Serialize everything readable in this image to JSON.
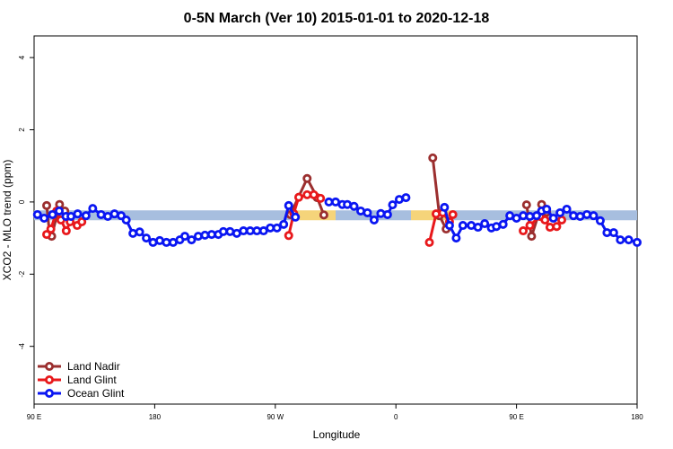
{
  "chart_data": {
    "type": "line",
    "title": "0-5N March (Ver 10)   2015-01-01 to 2020-12-18",
    "xlabel": "Longitude",
    "ylabel": "XCO2 - MLO trend (ppm)",
    "xlim": [
      0,
      360
    ],
    "ylim": [
      -5.6,
      4.6
    ],
    "x_ticks": [
      {
        "value": 0,
        "label": "90 E"
      },
      {
        "value": 72,
        "label": "180"
      },
      {
        "value": 144,
        "label": "90 W"
      },
      {
        "value": 216,
        "label": "0"
      },
      {
        "value": 288,
        "label": "90 E"
      },
      {
        "value": 360,
        "label": "180"
      }
    ],
    "y_ticks": [
      -4,
      -2,
      0,
      2,
      4
    ],
    "grid": false,
    "legend_position": "bottom-left",
    "bands": [
      {
        "x": [
          0,
          155
        ],
        "y": -0.37,
        "color": "#a7bedf"
      },
      {
        "x": [
          155,
          180
        ],
        "y": -0.37,
        "color": "#f5d47a"
      },
      {
        "x": [
          180,
          225
        ],
        "y": -0.37,
        "color": "#a7bedf"
      },
      {
        "x": [
          225,
          250
        ],
        "y": -0.37,
        "color": "#f5d47a"
      },
      {
        "x": [
          250,
          360
        ],
        "y": -0.37,
        "color": "#a7bedf"
      }
    ],
    "series": [
      {
        "name": "Land Nadir",
        "color": "#9b2f2f",
        "segments": [
          [
            [
              7.5,
              -0.1
            ],
            [
              9.3,
              -0.9
            ],
            [
              10.5,
              -0.95
            ],
            [
              15.2,
              -0.07
            ],
            [
              18.3,
              -0.25
            ]
          ],
          [
            [
              153,
              -0.35
            ],
            [
              163,
              0.65
            ],
            [
              169,
              0.12
            ],
            [
              173,
              -0.36
            ]
          ],
          [
            [
              238,
              1.22
            ],
            [
              242,
              -0.38
            ],
            [
              246,
              -0.75
            ]
          ],
          [
            [
              294,
              -0.08
            ],
            [
              297,
              -0.95
            ],
            [
              303,
              -0.07
            ],
            [
              306,
              -0.28
            ]
          ]
        ]
      },
      {
        "name": "Land Glint",
        "color": "#e8181b",
        "segments": [
          [
            [
              7.5,
              -0.9
            ],
            [
              10.0,
              -0.75
            ],
            [
              13.5,
              -0.25
            ],
            [
              16.0,
              -0.5
            ],
            [
              19.2,
              -0.8
            ],
            [
              21.5,
              -0.55
            ],
            [
              25.7,
              -0.65
            ],
            [
              28.5,
              -0.55
            ]
          ],
          [
            [
              152,
              -0.93
            ],
            [
              155,
              -0.32
            ],
            [
              158,
              0.13
            ],
            [
              163,
              0.2
            ],
            [
              167,
              0.2
            ],
            [
              171,
              0.1
            ]
          ],
          [
            [
              236,
              -1.12
            ],
            [
              240,
              -0.33
            ],
            [
              244,
              -0.3
            ],
            [
              248,
              -0.55
            ],
            [
              250,
              -0.35
            ]
          ],
          [
            [
              292,
              -0.8
            ],
            [
              296,
              -0.65
            ],
            [
              302,
              -0.4
            ],
            [
              305,
              -0.5
            ],
            [
              308,
              -0.7
            ],
            [
              312,
              -0.68
            ],
            [
              315,
              -0.5
            ]
          ]
        ]
      },
      {
        "name": "Ocean Glint",
        "color": "#0a16f2",
        "segments": [
          [
            [
              2,
              -0.35
            ],
            [
              6,
              -0.45
            ],
            [
              11,
              -0.35
            ],
            [
              15,
              -0.25
            ],
            [
              19,
              -0.4
            ],
            [
              22,
              -0.4
            ],
            [
              26,
              -0.33
            ],
            [
              31,
              -0.38
            ],
            [
              35,
              -0.18
            ],
            [
              40,
              -0.35
            ],
            [
              44,
              -0.4
            ],
            [
              48,
              -0.33
            ],
            [
              52,
              -0.38
            ],
            [
              55,
              -0.5
            ],
            [
              59,
              -0.87
            ],
            [
              63,
              -0.83
            ],
            [
              67,
              -1.0
            ],
            [
              71,
              -1.12
            ],
            [
              75,
              -1.07
            ],
            [
              79,
              -1.12
            ],
            [
              83,
              -1.12
            ],
            [
              87,
              -1.05
            ],
            [
              90,
              -0.95
            ],
            [
              94,
              -1.05
            ],
            [
              98,
              -0.95
            ],
            [
              102,
              -0.92
            ],
            [
              106,
              -0.9
            ],
            [
              110,
              -0.9
            ],
            [
              113,
              -0.82
            ],
            [
              117,
              -0.82
            ],
            [
              121,
              -0.87
            ],
            [
              125,
              -0.8
            ],
            [
              129,
              -0.8
            ],
            [
              133,
              -0.8
            ],
            [
              137,
              -0.8
            ],
            [
              141,
              -0.72
            ],
            [
              145,
              -0.72
            ],
            [
              149,
              -0.62
            ],
            [
              152,
              -0.1
            ],
            [
              156,
              -0.42
            ]
          ],
          [
            [
              176,
              0.0
            ],
            [
              180,
              0.0
            ],
            [
              184,
              -0.07
            ],
            [
              187,
              -0.07
            ],
            [
              191,
              -0.12
            ],
            [
              195,
              -0.25
            ],
            [
              199,
              -0.3
            ],
            [
              203,
              -0.5
            ],
            [
              207,
              -0.32
            ],
            [
              211,
              -0.35
            ],
            [
              214,
              -0.08
            ],
            [
              218,
              0.07
            ],
            [
              222,
              0.12
            ]
          ],
          [
            [
              245,
              -0.15
            ],
            [
              248,
              -0.65
            ],
            [
              252,
              -1.0
            ],
            [
              256,
              -0.65
            ],
            [
              261,
              -0.65
            ],
            [
              265,
              -0.7
            ],
            [
              269,
              -0.6
            ],
            [
              273,
              -0.72
            ],
            [
              276,
              -0.68
            ],
            [
              280,
              -0.62
            ],
            [
              284,
              -0.38
            ],
            [
              288,
              -0.45
            ],
            [
              292,
              -0.38
            ],
            [
              296,
              -0.4
            ],
            [
              300,
              -0.38
            ],
            [
              303,
              -0.25
            ],
            [
              306,
              -0.2
            ],
            [
              310,
              -0.45
            ],
            [
              314,
              -0.3
            ],
            [
              318,
              -0.2
            ],
            [
              322,
              -0.38
            ],
            [
              326,
              -0.4
            ],
            [
              330,
              -0.35
            ],
            [
              334,
              -0.38
            ],
            [
              338,
              -0.52
            ],
            [
              342,
              -0.85
            ],
            [
              346,
              -0.85
            ],
            [
              350,
              -1.05
            ],
            [
              355,
              -1.05
            ],
            [
              360,
              -1.12
            ]
          ]
        ]
      }
    ]
  }
}
